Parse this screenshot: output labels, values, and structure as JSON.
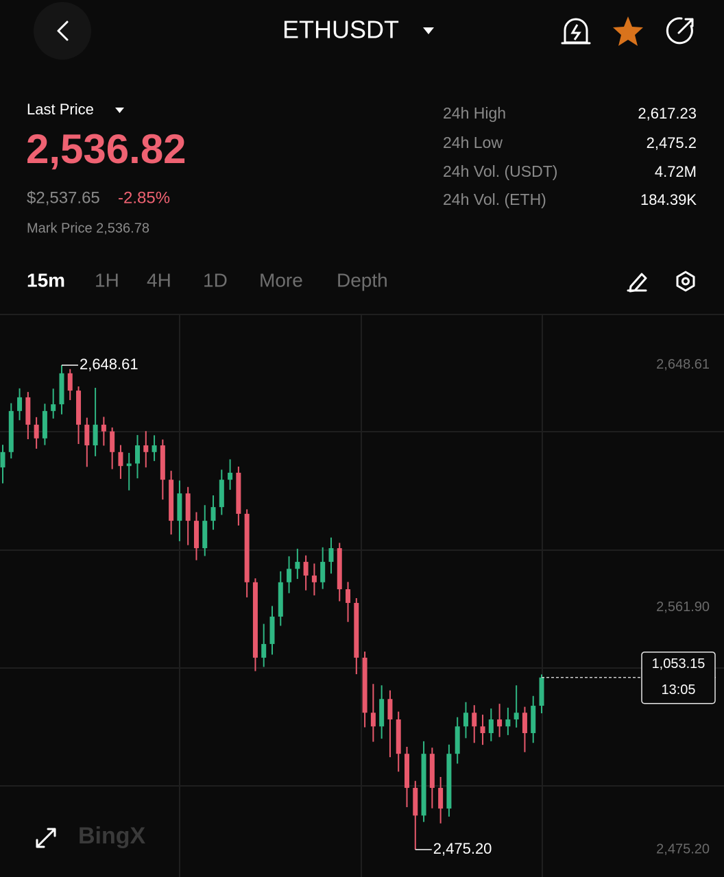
{
  "header": {
    "title": "ETHUSDT"
  },
  "ticker": {
    "last_price_label": "Last Price",
    "last_price": "2,536.82",
    "usd_price": "$2,537.65",
    "change": "-2.85%",
    "mark_price": "Mark Price 2,536.78",
    "stats": [
      {
        "label": "24h High",
        "value": "2,617.23"
      },
      {
        "label": "24h Low",
        "value": "2,475.2"
      },
      {
        "label": "24h Vol. (USDT)",
        "value": "4.72M"
      },
      {
        "label": "24h Vol. (ETH)",
        "value": "184.39K"
      }
    ]
  },
  "tabs": [
    "15m",
    "1H",
    "4H",
    "1D",
    "More",
    "Depth"
  ],
  "watermark": "BingX",
  "chart_data": {
    "type": "candlestick",
    "up_color": "#2fb783",
    "down_color": "#e8596c",
    "ylim": [
      2465.4,
      2666.5
    ],
    "yticks": [
      {
        "value": 2648.61,
        "label": "2,648.61"
      },
      {
        "value": 2561.9,
        "label": "2,561.90"
      },
      {
        "value": 2475.2,
        "label": "2,475.20"
      }
    ],
    "max_label": {
      "value": 2648.61,
      "label": "2,648.61"
    },
    "min_label": {
      "value": 2475.2,
      "label": "2,475.20"
    },
    "last_box": {
      "value": "1,053.15",
      "time": "13:05"
    },
    "open": [
      2612.0,
      2617.5,
      2632.2,
      2637.1,
      2627.3,
      2622.4,
      2632.2,
      2634.6,
      2645.7,
      2639.5,
      2627.3,
      2619.9,
      2627.3,
      2624.9,
      2617.5,
      2612.5,
      2613.4,
      2619.9,
      2617.5,
      2619.9,
      2607.6,
      2592.9,
      2602.7,
      2592.9,
      2583.1,
      2592.9,
      2597.8,
      2607.6,
      2610.1,
      2595.4,
      2570.9,
      2543.9,
      2548.8,
      2558.6,
      2570.9,
      2575.7,
      2578.2,
      2573.3,
      2570.9,
      2578.2,
      2583.1,
      2568.4,
      2563.5,
      2543.9,
      2524.2,
      2519.3,
      2529.1,
      2521.8,
      2509.5,
      2497.3,
      2487.4,
      2509.5,
      2497.3,
      2489.9,
      2509.5,
      2519.3,
      2524.2,
      2519.3,
      2516.9,
      2521.8,
      2519.3,
      2521.8,
      2524.2,
      2516.9,
      2526.7
    ],
    "high": [
      2620.1,
      2635.0,
      2640.3,
      2639.0,
      2630.0,
      2634.8,
      2640.2,
      2648.61,
      2647.2,
      2641.0,
      2629.8,
      2640.5,
      2630.1,
      2626.3,
      2620.0,
      2617.2,
      2623.6,
      2625.0,
      2623.5,
      2622.0,
      2610.8,
      2607.3,
      2605.0,
      2596.0,
      2598.5,
      2602.0,
      2611.2,
      2614.9,
      2612.3,
      2597.0,
      2572.3,
      2556.0,
      2562.4,
      2574.8,
      2580.2,
      2582.9,
      2580.5,
      2577.6,
      2583.4,
      2586.9,
      2585.0,
      2571.0,
      2565.2,
      2546.1,
      2534.5,
      2534.0,
      2532.2,
      2524.6,
      2512.0,
      2499.8,
      2514.0,
      2511.7,
      2501.2,
      2512.8,
      2522.6,
      2528.0,
      2526.9,
      2523.5,
      2525.7,
      2527.4,
      2526.0,
      2534.0,
      2526.3,
      2530.2,
      2537.9
    ],
    "low": [
      2606.3,
      2615.2,
      2628.9,
      2622.1,
      2618.7,
      2620.0,
      2629.5,
      2631.0,
      2636.1,
      2620.4,
      2612.2,
      2616.0,
      2619.8,
      2611.4,
      2607.9,
      2603.8,
      2608.1,
      2612.0,
      2614.3,
      2600.5,
      2588.0,
      2585.6,
      2584.2,
      2578.8,
      2580.3,
      2589.7,
      2595.0,
      2604.0,
      2591.2,
      2565.5,
      2539.1,
      2540.6,
      2545.0,
      2555.3,
      2567.0,
      2572.1,
      2568.0,
      2566.2,
      2568.5,
      2574.0,
      2564.1,
      2556.7,
      2538.0,
      2519.0,
      2513.8,
      2514.9,
      2508.3,
      2503.1,
      2490.4,
      2475.2,
      2485.1,
      2490.0,
      2484.6,
      2487.0,
      2506.0,
      2515.1,
      2513.4,
      2512.7,
      2514.0,
      2515.5,
      2516.2,
      2518.9,
      2510.1,
      2513.4,
      2524.0
    ],
    "close": [
      2617.5,
      2632.2,
      2637.1,
      2627.3,
      2622.4,
      2632.2,
      2634.6,
      2645.7,
      2639.5,
      2627.3,
      2619.9,
      2627.3,
      2624.9,
      2617.5,
      2612.5,
      2613.4,
      2619.9,
      2617.5,
      2619.9,
      2607.6,
      2592.9,
      2602.7,
      2592.9,
      2583.1,
      2592.9,
      2597.8,
      2607.6,
      2610.1,
      2595.4,
      2570.9,
      2543.9,
      2548.8,
      2558.6,
      2570.9,
      2575.7,
      2578.2,
      2573.3,
      2570.9,
      2578.2,
      2583.1,
      2568.4,
      2563.5,
      2543.9,
      2524.2,
      2519.3,
      2529.1,
      2521.8,
      2509.5,
      2497.3,
      2487.4,
      2509.5,
      2497.3,
      2489.9,
      2509.5,
      2519.3,
      2524.2,
      2519.3,
      2516.9,
      2521.8,
      2519.3,
      2521.8,
      2524.2,
      2516.9,
      2526.7,
      2536.82
    ]
  }
}
